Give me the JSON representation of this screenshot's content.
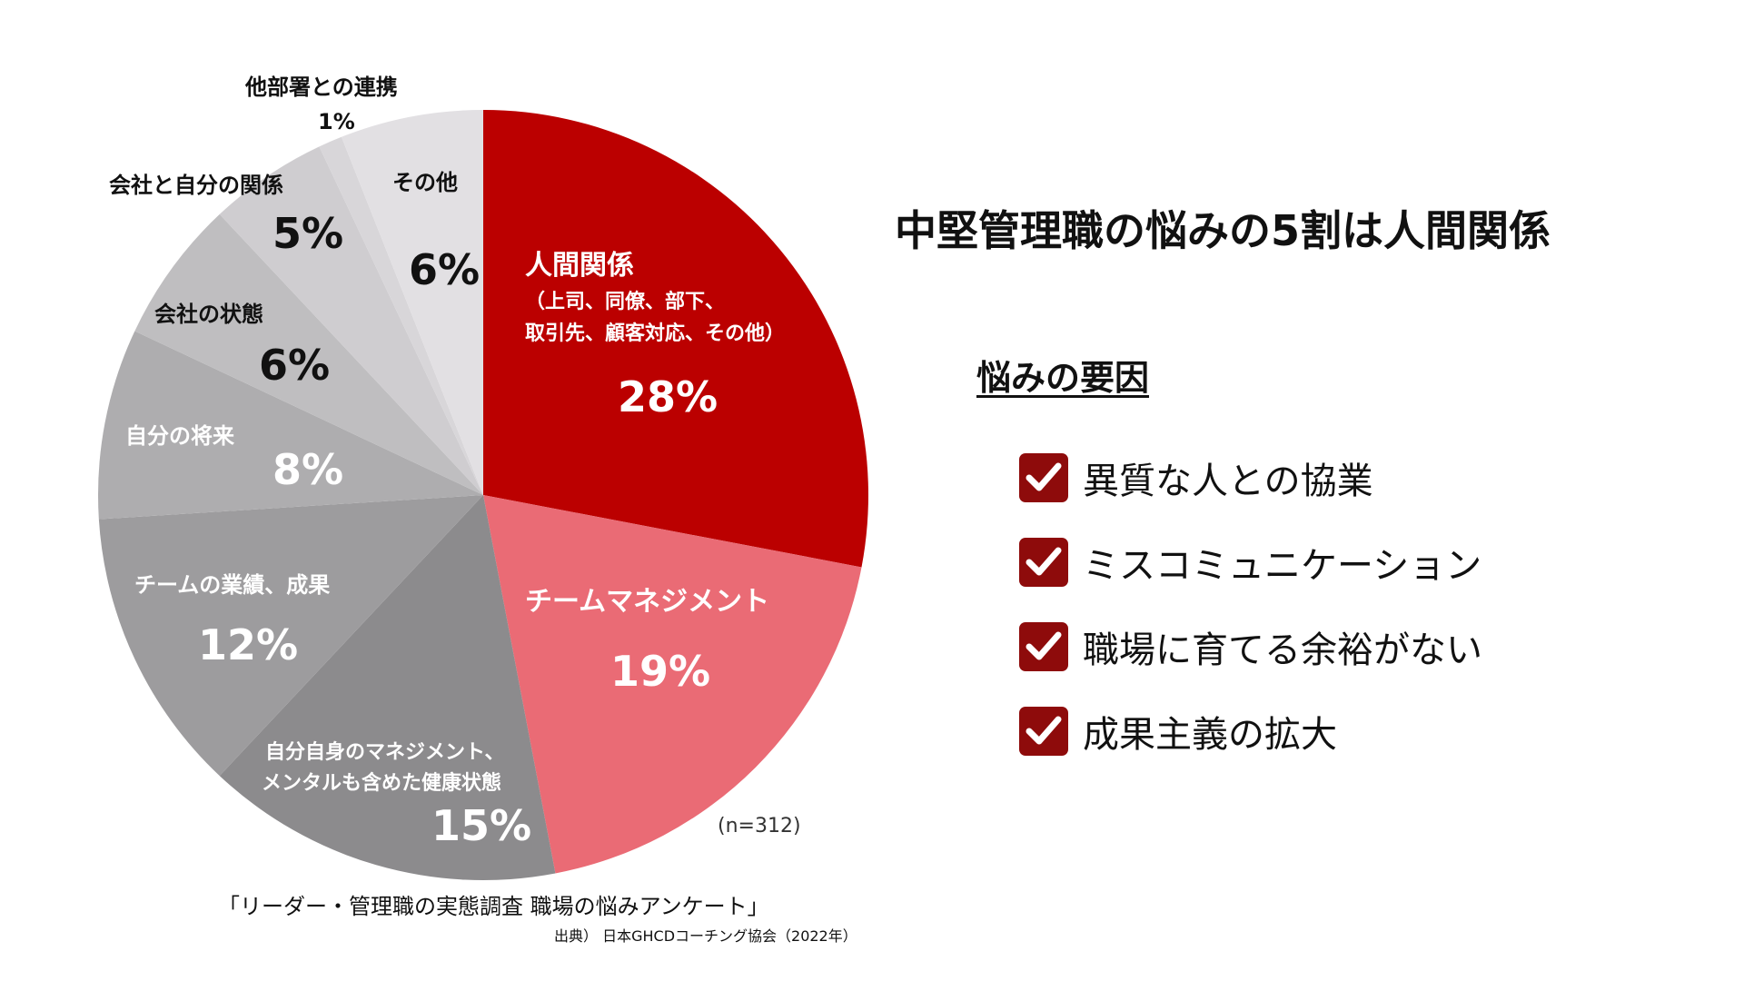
{
  "title": "中堅管理職の悩みの5割は人間関係",
  "chart_data": {
    "type": "pie",
    "sample_size": "(n=312)",
    "survey_name": "「リーダー・管理職の実態調査 職場の悩みアンケート」",
    "source": "出典） 日本GHCDコーチング協会（2022年）",
    "slices": [
      {
        "label": "人間関係",
        "sublabel": [
          "（上司、同僚、部下、",
          "取引先、顧客対応、その他）"
        ],
        "value": 28,
        "pct_label": "28%",
        "color": "#bb0000"
      },
      {
        "label": "チームマネジメント",
        "sublabel": [],
        "value": 19,
        "pct_label": "19%",
        "color": "#ea6b75"
      },
      {
        "label": "自分自身のマネジメント、",
        "sublabel": [
          "メンタルも含めた健康状態"
        ],
        "value": 15,
        "pct_label": "15%",
        "color": "#8c8b8d"
      },
      {
        "label": "チームの業績、成果",
        "sublabel": [],
        "value": 12,
        "pct_label": "12%",
        "color": "#9d9c9e"
      },
      {
        "label": "自分の将来",
        "sublabel": [],
        "value": 8,
        "pct_label": "8%",
        "color": "#aeadaf"
      },
      {
        "label": "会社の状態",
        "sublabel": [],
        "value": 6,
        "pct_label": "6%",
        "color": "#bfbec0"
      },
      {
        "label": "会社と自分の関係",
        "sublabel": [],
        "value": 5,
        "pct_label": "5%",
        "color": "#cfcdd0"
      },
      {
        "label": "他部署との連携",
        "sublabel": [],
        "value": 1,
        "pct_label": "1%",
        "color": "#d8d6d9"
      },
      {
        "label": "その他",
        "sublabel": [],
        "value": 6,
        "pct_label": "6%",
        "color": "#e2e0e3"
      }
    ]
  },
  "factors": {
    "heading": "悩みの要因",
    "items": [
      "異質な人との協業",
      "ミスコミュニケーション",
      "職場に育てる余裕がない",
      "成果主義の拡大"
    ],
    "check_color": "#8e0b0b"
  }
}
